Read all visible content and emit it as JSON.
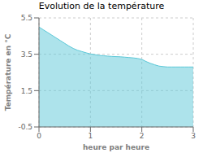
{
  "chart_data": {
    "type": "area",
    "title": "Evolution de la température",
    "xlabel": "heure par heure",
    "ylabel": "Température en °C",
    "x": [
      0,
      0.083,
      0.167,
      0.25,
      0.333,
      0.417,
      0.5,
      0.583,
      0.667,
      0.75,
      0.833,
      0.917,
      1.0,
      1.083,
      1.167,
      1.25,
      1.333,
      1.417,
      1.5,
      1.583,
      1.667,
      1.75,
      1.833,
      1.917,
      2.0,
      2.083,
      2.167,
      2.25,
      2.333,
      2.417,
      2.5,
      2.583,
      2.667,
      2.75,
      2.833,
      2.917,
      3.0
    ],
    "values": [
      5.0,
      4.85,
      4.7,
      4.55,
      4.4,
      4.25,
      4.1,
      3.95,
      3.82,
      3.72,
      3.65,
      3.58,
      3.52,
      3.48,
      3.44,
      3.42,
      3.4,
      3.38,
      3.37,
      3.36,
      3.34,
      3.32,
      3.3,
      3.27,
      3.22,
      3.1,
      3.0,
      2.92,
      2.85,
      2.82,
      2.8,
      2.8,
      2.8,
      2.8,
      2.8,
      2.8,
      2.8
    ],
    "xlim": [
      0,
      3
    ],
    "ylim": [
      -0.5,
      5.5
    ],
    "xticks": [
      0,
      1,
      2,
      3
    ],
    "yticks": [
      -0.5,
      1.5,
      3.5,
      5.5
    ],
    "grid": true,
    "color": "#5bc8d8"
  }
}
